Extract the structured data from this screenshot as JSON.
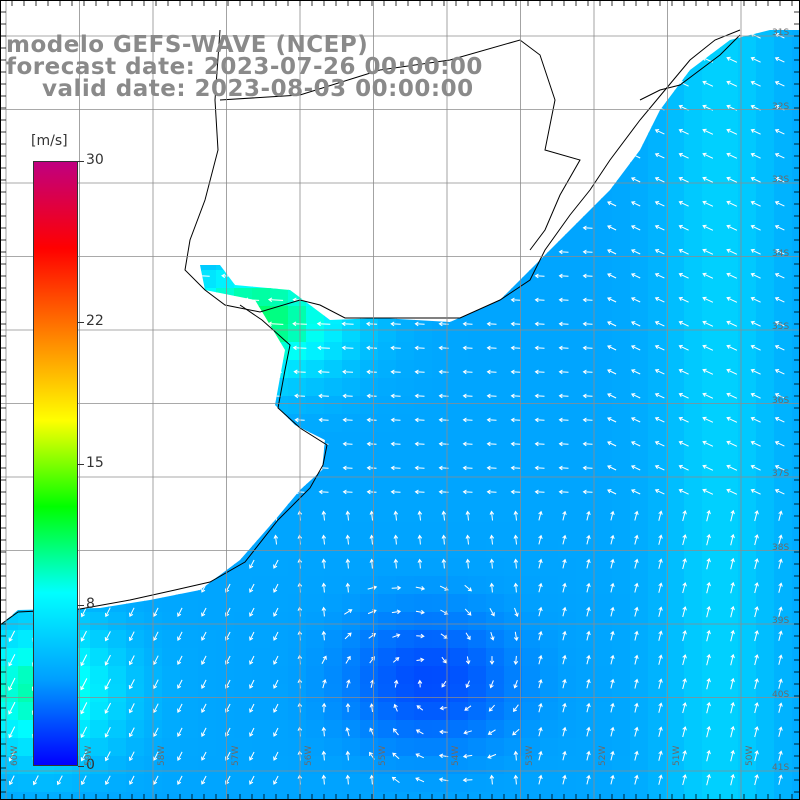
{
  "title": {
    "line1": "modelo GEFS-WAVE (NCEP)",
    "line2": "forecast date: 2023-07-26 00:00:00",
    "line3": "valid date: 2023-08-03 00:00:00"
  },
  "colorbar": {
    "unit": "[m/s]",
    "ticks": [
      {
        "value": 30,
        "label": "30"
      },
      {
        "value": 22,
        "label": "22"
      },
      {
        "value": 15,
        "label": "15"
      },
      {
        "value": 8,
        "label": "8"
      },
      {
        "value": 0,
        "label": "0"
      }
    ],
    "range": [
      0,
      30
    ],
    "colors": [
      "#0000ff",
      "#00a0ff",
      "#00ffff",
      "#00ff00",
      "#ffff00",
      "#ff8000",
      "#ff0000",
      "#c00080"
    ]
  },
  "map": {
    "lat_labels": [
      "31S",
      "32S",
      "33S",
      "34S",
      "35S",
      "36S",
      "37S",
      "38S",
      "39S",
      "40S",
      "41S"
    ],
    "lon_labels": [
      "60W",
      "59W",
      "58W",
      "57W",
      "56W",
      "55W",
      "54W",
      "53W",
      "52W",
      "51W",
      "50W"
    ],
    "colors": {
      "land": "#ffffff",
      "coast": "#000000",
      "grid": "#8c8c8c",
      "arrows": "#ffffff"
    }
  }
}
